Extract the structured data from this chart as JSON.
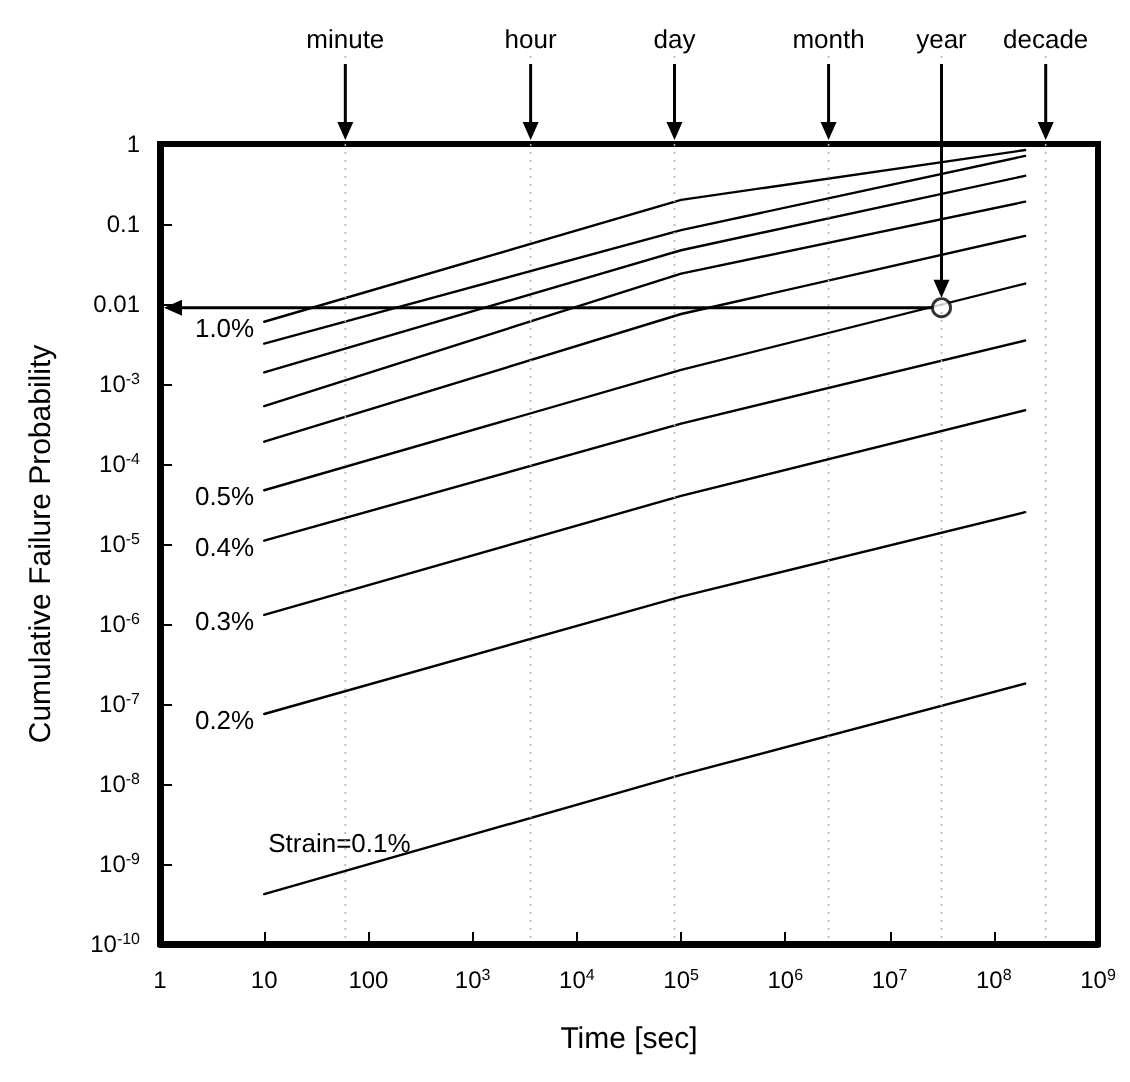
{
  "chart_data": {
    "type": "line",
    "xlabel": "Time [sec]",
    "ylabel": "Cumulative Failure Probability",
    "log": "xy",
    "grid": false,
    "xlim": [
      1,
      1000000000
    ],
    "ylim": [
      1e-10,
      1
    ],
    "xticks": [
      1,
      10,
      100,
      {
        "value": 1000,
        "label": "10$^{3}$"
      },
      {
        "value": 10000,
        "label": "10$^{4}$"
      },
      {
        "value": 100000,
        "label": "10$^{5}$"
      },
      {
        "value": 1000000,
        "label": "10$^{6}$"
      },
      {
        "value": 10000000,
        "label": "10$^{7}$"
      },
      {
        "value": 100000000,
        "label": "10$^{8}$"
      },
      {
        "value": 1000000000,
        "label": "10$^{9}$"
      }
    ],
    "yticks": [
      {
        "value": 1e-10,
        "label": "10$^{-10}$"
      },
      {
        "value": 1e-09,
        "label": "10$^{-9}$"
      },
      {
        "value": 1e-08,
        "label": "10$^{-8}$"
      },
      {
        "value": 1e-07,
        "label": "10$^{-7}$"
      },
      {
        "value": 1e-06,
        "label": "10$^{-6}$"
      },
      {
        "value": 1e-05,
        "label": "10$^{-5}$"
      },
      {
        "value": 0.0001,
        "label": "10$^{-4}$"
      },
      {
        "value": 0.001,
        "label": "10$^{-3}$"
      },
      0.01,
      0.1,
      1
    ],
    "ref_lines": [
      {
        "axis": "x",
        "value": 60,
        "label": "minute"
      },
      {
        "axis": "x",
        "value": 3600,
        "label": "hour"
      },
      {
        "axis": "x",
        "value": 86400,
        "label": "day"
      },
      {
        "axis": "x",
        "value": 2600000,
        "label": "month"
      },
      {
        "axis": "x",
        "value": 31500000,
        "label": "year"
      },
      {
        "axis": "x",
        "value": 315000000,
        "label": "decade"
      }
    ],
    "series": [
      {
        "name": "Strain=0.1%",
        "color": "#000000",
        "x": [
          10,
          100000,
          200000000
        ],
        "values": [
          4.2e-10,
          1.3e-08,
          1.8e-07
        ]
      },
      {
        "name": "0.2%",
        "color": "#000000",
        "x": [
          10,
          100000,
          200000000
        ],
        "values": [
          7.5e-08,
          2.2e-06,
          2.5e-05
        ]
      },
      {
        "name": "0.3%",
        "color": "#000000",
        "x": [
          10,
          100000,
          200000000
        ],
        "values": [
          1.3e-06,
          4e-05,
          0.00047
        ]
      },
      {
        "name": "0.4%",
        "color": "#000000",
        "x": [
          10,
          100000,
          200000000
        ],
        "values": [
          1.1e-05,
          0.00032,
          0.0035
        ]
      },
      {
        "name": "0.5%",
        "color": "#000000",
        "x": [
          10,
          100000,
          200000000
        ],
        "values": [
          4.7e-05,
          0.0015,
          0.018
        ]
      },
      {
        "color": "#000000",
        "x": [
          10,
          100000,
          200000000
        ],
        "values": [
          0.00019,
          0.0075,
          0.071
        ]
      },
      {
        "color": "#000000",
        "x": [
          10,
          100000,
          200000000
        ],
        "values": [
          0.00053,
          0.024,
          0.19
        ]
      },
      {
        "color": "#000000",
        "x": [
          10,
          100000,
          200000000
        ],
        "values": [
          0.0014,
          0.047,
          0.4
        ]
      },
      {
        "color": "#000000",
        "x": [
          10,
          100000,
          200000000
        ],
        "values": [
          0.0032,
          0.084,
          0.71
        ]
      },
      {
        "name": "1.0%",
        "color": "#000000",
        "x": [
          10,
          100000,
          200000000
        ],
        "values": [
          0.006,
          0.2,
          0.84
        ]
      },
      {
        "type": "scatter",
        "marker": "circle",
        "color": "#000000",
        "x": [
          31500000
        ],
        "values": [
          0.009
        ]
      }
    ]
  }
}
